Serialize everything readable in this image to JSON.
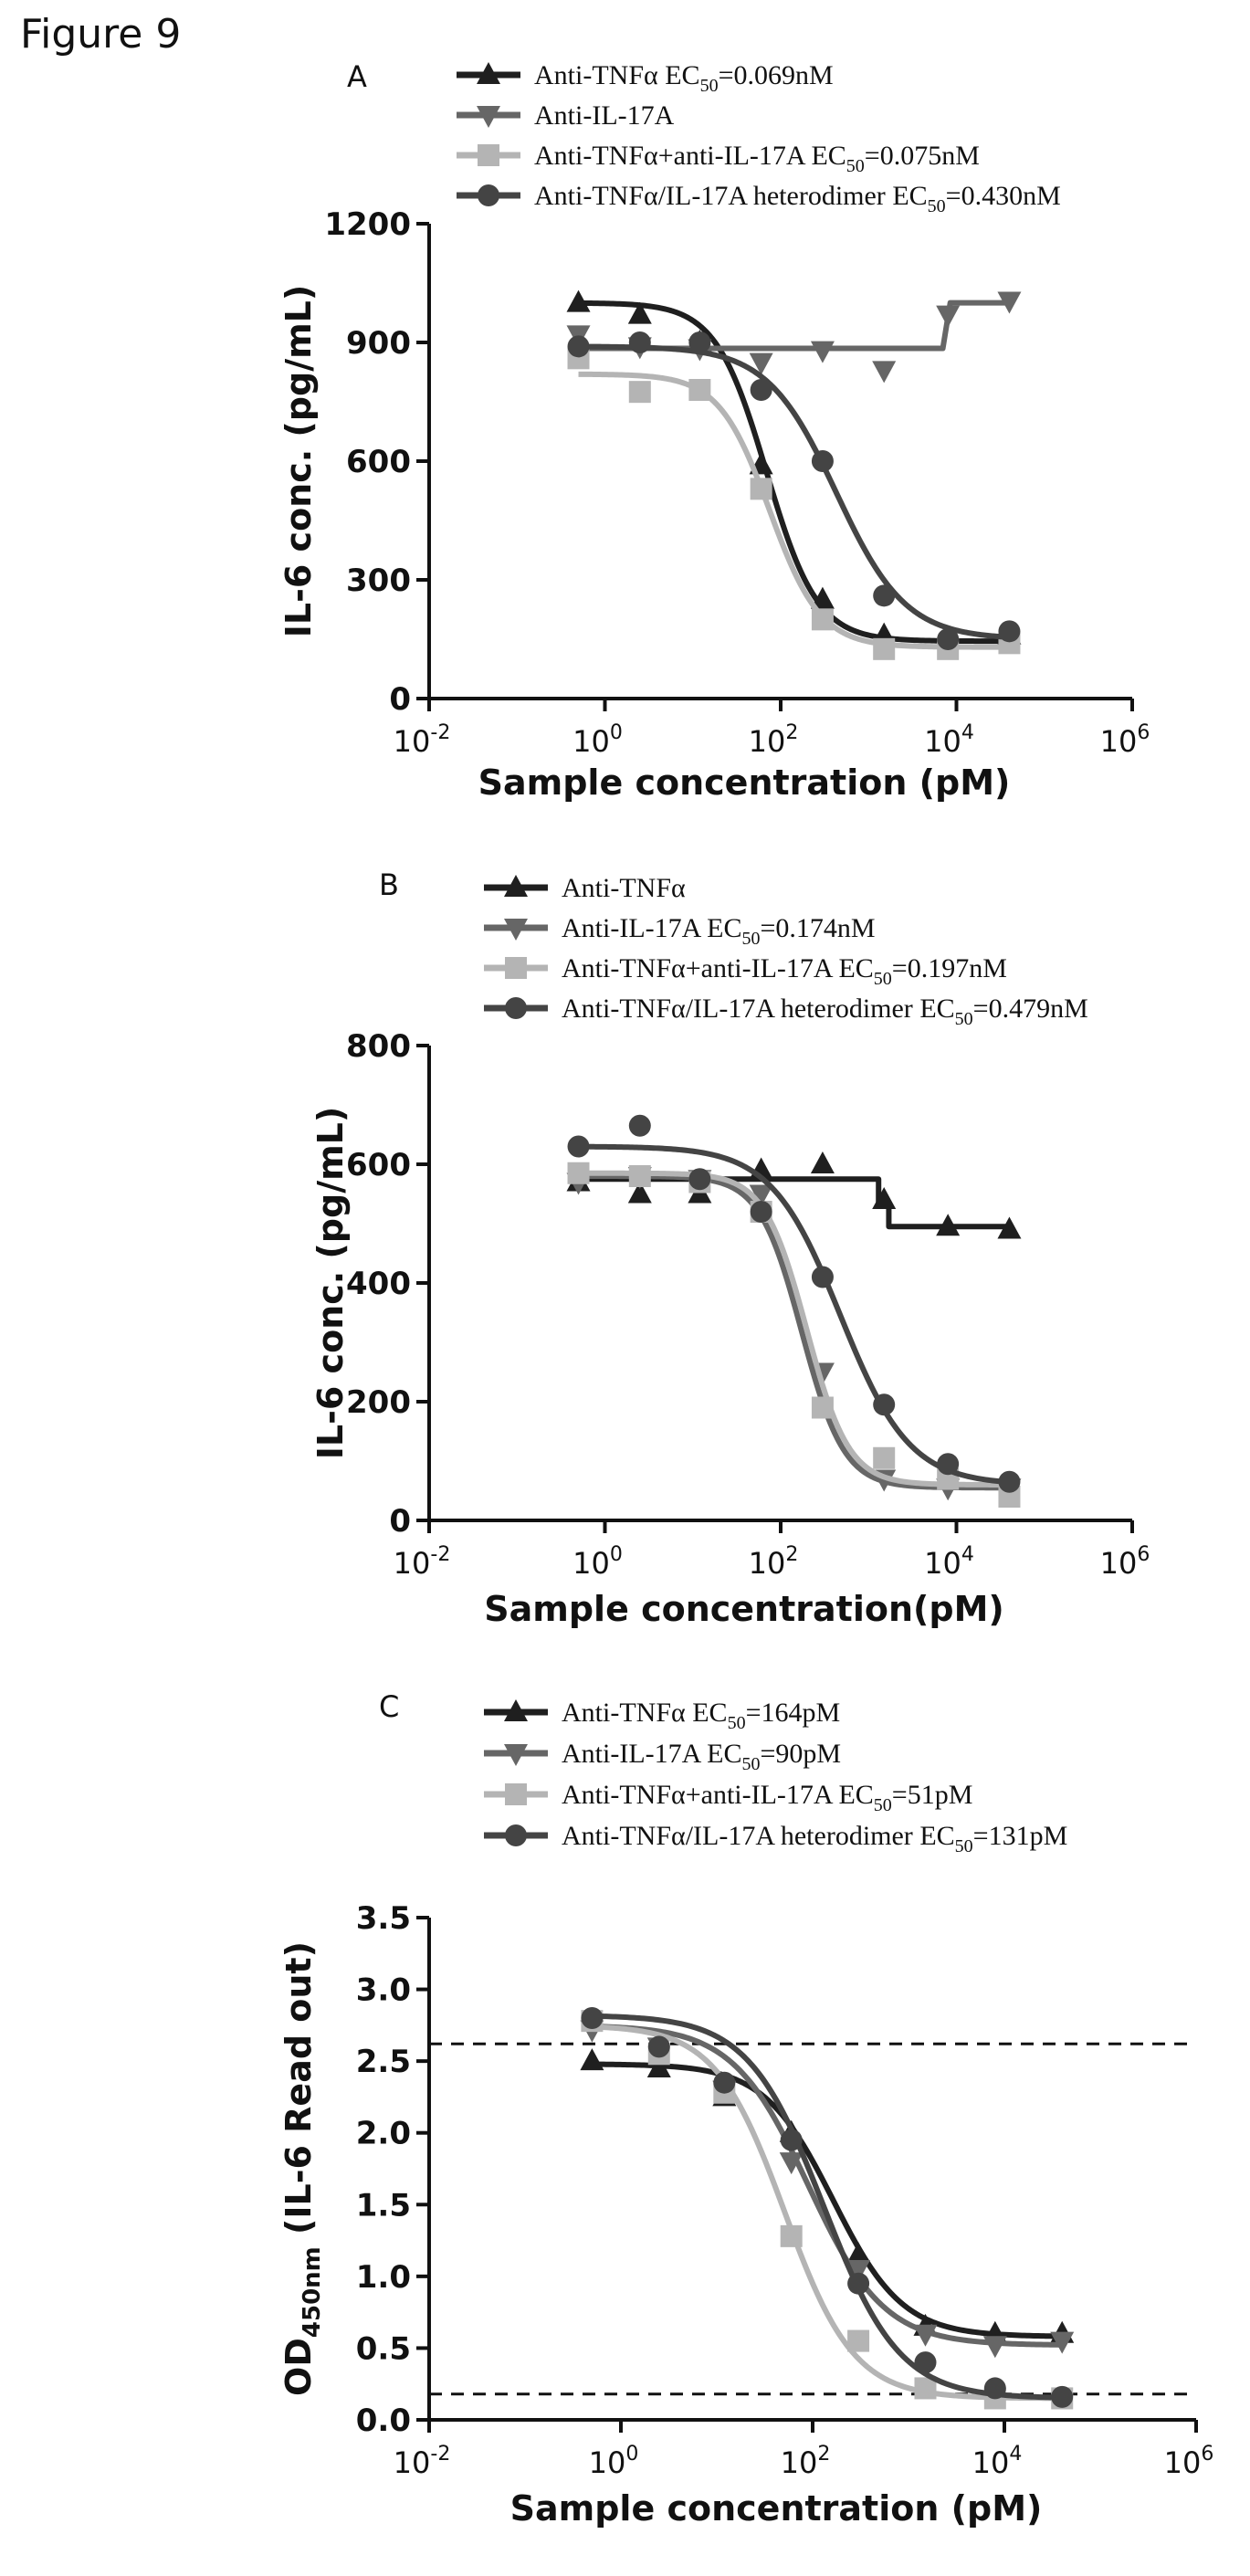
{
  "figure_title": "Figure 9",
  "chart_data": [
    {
      "panel": "A",
      "type": "scatter",
      "xscale": "log",
      "xlabel": "Sample concentration (pM)",
      "ylabel": "IL-6 conc. (pg/mL)",
      "xlim": [
        0.01,
        1000000
      ],
      "ylim": [
        0,
        1200
      ],
      "xticks": [
        {
          "exp": "-2"
        },
        {
          "exp": "0"
        },
        {
          "exp": "2"
        },
        {
          "exp": "4"
        },
        {
          "exp": "6"
        }
      ],
      "yticks": [
        "0",
        "300",
        "600",
        "900",
        "1200"
      ],
      "legend_position": "top",
      "series": [
        {
          "name": "Anti-TNFα",
          "ec50_label": "EC50=0.069nM",
          "color": "#1f1f1f",
          "marker": "triangle-up",
          "x": [
            0.5,
            2.5,
            12,
            60,
            300,
            1500,
            8000,
            40000
          ],
          "y": [
            1000,
            970,
            900,
            590,
            250,
            160,
            150,
            160
          ],
          "fit": {
            "type": "sigmoid",
            "top": 1000,
            "bottom": 145,
            "ec50_pM": 69,
            "hill": 1.5
          }
        },
        {
          "name": "Anti-IL-17A",
          "ec50_label": "",
          "color": "#666666",
          "marker": "triangle-down",
          "x": [
            0.5,
            2.5,
            12,
            60,
            300,
            1500,
            8000,
            40000
          ],
          "y": [
            920,
            890,
            885,
            850,
            880,
            830,
            970,
            1005
          ],
          "fit": {
            "type": "step",
            "x": [
              0.5,
              7000,
              8500,
              40000
            ],
            "y": [
              885,
              885,
              1000,
              1000
            ]
          }
        },
        {
          "name": "Anti-TNFα+anti-IL-17A",
          "ec50_label": "EC50=0.075nM",
          "color": "#b4b4b4",
          "marker": "square",
          "x": [
            0.5,
            2.5,
            12,
            60,
            300,
            1500,
            8000,
            40000
          ],
          "y": [
            860,
            775,
            780,
            530,
            200,
            125,
            125,
            140
          ],
          "fit": {
            "type": "sigmoid",
            "top": 820,
            "bottom": 130,
            "ec50_pM": 75,
            "hill": 1.5
          }
        },
        {
          "name": "Anti-TNFα/IL-17A heterodimer",
          "ec50_label": "EC50=0.430nM",
          "color": "#444444",
          "marker": "circle",
          "x": [
            0.5,
            2.5,
            12,
            60,
            300,
            1500,
            8000,
            40000
          ],
          "y": [
            890,
            900,
            900,
            780,
            600,
            260,
            150,
            170
          ],
          "fit": {
            "type": "sigmoid",
            "top": 890,
            "bottom": 150,
            "ec50_pM": 430,
            "hill": 1.1
          }
        }
      ]
    },
    {
      "panel": "B",
      "type": "scatter",
      "xscale": "log",
      "xlabel": "Sample concentration(pM)",
      "ylabel": "IL-6 conc. (pg/mL)",
      "xlim": [
        0.01,
        1000000
      ],
      "ylim": [
        0,
        800
      ],
      "xticks": [
        {
          "exp": "-2"
        },
        {
          "exp": "0"
        },
        {
          "exp": "2"
        },
        {
          "exp": "4"
        },
        {
          "exp": "6"
        }
      ],
      "yticks": [
        "0",
        "200",
        "400",
        "600",
        "800"
      ],
      "legend_position": "top",
      "series": [
        {
          "name": "Anti-TNFα",
          "ec50_label": "",
          "color": "#1f1f1f",
          "marker": "triangle-up",
          "x": [
            0.5,
            2.5,
            12,
            60,
            300,
            1500,
            8000,
            40000
          ],
          "y": [
            570,
            550,
            550,
            590,
            600,
            540,
            495,
            490
          ],
          "fit": {
            "type": "step",
            "x": [
              0.5,
              1300,
              1300,
              1700,
              1700,
              40000
            ],
            "y": [
              575,
              575,
              535,
              535,
              495,
              495
            ]
          }
        },
        {
          "name": "Anti-IL-17A",
          "ec50_label": "EC50=0.174nM",
          "color": "#666666",
          "marker": "triangle-down",
          "x": [
            0.5,
            2.5,
            12,
            60,
            300,
            1500,
            8000,
            40000
          ],
          "y": [
            570,
            580,
            575,
            550,
            250,
            70,
            55,
            55
          ],
          "fit": {
            "type": "sigmoid",
            "top": 580,
            "bottom": 55,
            "ec50_pM": 174,
            "hill": 1.8
          }
        },
        {
          "name": "Anti-TNFα+anti-IL-17A",
          "ec50_label": "EC50=0.197nM",
          "color": "#b4b4b4",
          "marker": "square",
          "x": [
            0.5,
            2.5,
            12,
            60,
            300,
            1500,
            8000,
            40000
          ],
          "y": [
            585,
            580,
            570,
            520,
            190,
            105,
            70,
            40
          ],
          "fit": {
            "type": "sigmoid",
            "top": 585,
            "bottom": 60,
            "ec50_pM": 197,
            "hill": 1.8
          }
        },
        {
          "name": "Anti-TNFα/IL-17A heterodimer",
          "ec50_label": "EC50=0.479nM",
          "color": "#444444",
          "marker": "circle",
          "x": [
            0.5,
            2.5,
            12,
            60,
            300,
            1500,
            8000,
            40000
          ],
          "y": [
            630,
            665,
            575,
            520,
            410,
            195,
            95,
            65
          ],
          "fit": {
            "type": "sigmoid",
            "top": 630,
            "bottom": 60,
            "ec50_pM": 479,
            "hill": 1.1
          }
        }
      ]
    },
    {
      "panel": "C",
      "type": "scatter",
      "xscale": "log",
      "xlabel": "Sample concentration (pM)",
      "ylabel": "OD450nm (IL-6 Read out)",
      "xlim": [
        0.01,
        1000000
      ],
      "ylim": [
        0,
        3.5
      ],
      "xticks": [
        {
          "exp": "-2"
        },
        {
          "exp": "0"
        },
        {
          "exp": "2"
        },
        {
          "exp": "4"
        },
        {
          "exp": "6"
        }
      ],
      "yticks": [
        "0.0",
        "0.5",
        "1.0",
        "1.5",
        "2.0",
        "2.5",
        "3.0",
        "3.5"
      ],
      "reference_lines": [
        2.62,
        0.18
      ],
      "legend_position": "top",
      "series": [
        {
          "name": "Anti-TNFα",
          "ec50_label": "EC50=164pM",
          "color": "#1f1f1f",
          "marker": "triangle-up",
          "x": [
            0.5,
            2.5,
            12,
            60,
            300,
            1500,
            8000,
            40000
          ],
          "y": [
            2.5,
            2.45,
            2.25,
            2.0,
            1.15,
            0.65,
            0.6,
            0.6
          ],
          "fit": {
            "type": "sigmoid",
            "top": 2.48,
            "bottom": 0.58,
            "ec50_pM": 164,
            "hill": 1.2
          }
        },
        {
          "name": "Anti-IL-17A",
          "ec50_label": "EC50=90pM",
          "color": "#666666",
          "marker": "triangle-down",
          "x": [
            0.5,
            2.5,
            12,
            60,
            300,
            1500,
            8000,
            40000
          ],
          "y": [
            2.72,
            2.6,
            2.3,
            1.8,
            1.05,
            0.6,
            0.52,
            0.55
          ],
          "fit": {
            "type": "sigmoid",
            "top": 2.75,
            "bottom": 0.52,
            "ec50_pM": 90,
            "hill": 1.1
          }
        },
        {
          "name": "Anti-TNFα+anti-IL-17A",
          "ec50_label": "EC50=51pM",
          "color": "#b4b4b4",
          "marker": "square",
          "x": [
            0.5,
            2.5,
            12,
            60,
            300,
            1500,
            8000,
            40000
          ],
          "y": [
            2.78,
            2.55,
            2.28,
            1.28,
            0.55,
            0.22,
            0.15,
            0.15
          ],
          "fit": {
            "type": "sigmoid",
            "top": 2.75,
            "bottom": 0.15,
            "ec50_pM": 51,
            "hill": 1.2
          }
        },
        {
          "name": "Anti-TNFα/IL-17A heterodimer",
          "ec50_label": "EC50=131pM",
          "color": "#444444",
          "marker": "circle",
          "x": [
            0.5,
            2.5,
            12,
            60,
            300,
            1500,
            8000,
            40000
          ],
          "y": [
            2.8,
            2.6,
            2.35,
            1.95,
            0.95,
            0.4,
            0.22,
            0.16
          ],
          "fit": {
            "type": "sigmoid",
            "top": 2.82,
            "bottom": 0.15,
            "ec50_pM": 131,
            "hill": 1.1
          }
        }
      ]
    }
  ]
}
